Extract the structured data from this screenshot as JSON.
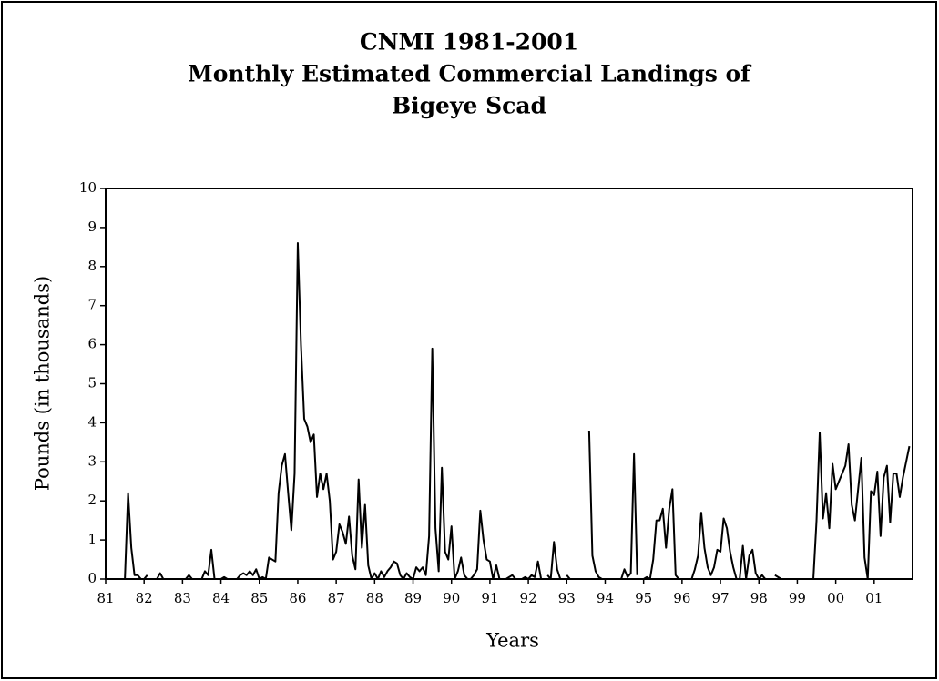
{
  "chart_data": {
    "type": "line",
    "title": [
      "CNMI 1981-2001",
      "Monthly Estimated Commercial Landings of",
      "Bigeye Scad"
    ],
    "x_label": "Years",
    "y_label": "Pounds (in thousands)",
    "x": [
      1981,
      1981.083,
      1981.167,
      1981.25,
      1981.333,
      1981.417,
      1981.5,
      1981.583,
      1981.667,
      1981.75,
      1981.833,
      1981.917,
      1982,
      1982.083,
      1982.167,
      1982.25,
      1982.333,
      1982.417,
      1982.5,
      1982.583,
      1982.667,
      1982.75,
      1982.833,
      1982.917,
      1983,
      1983.083,
      1983.167,
      1983.25,
      1983.333,
      1983.417,
      1983.5,
      1983.583,
      1983.667,
      1983.75,
      1983.833,
      1983.917,
      1984,
      1984.083,
      1984.167,
      1984.25,
      1984.333,
      1984.417,
      1984.5,
      1984.583,
      1984.667,
      1984.75,
      1984.833,
      1984.917,
      1985,
      1985.083,
      1985.167,
      1985.25,
      1985.333,
      1985.417,
      1985.5,
      1985.583,
      1985.667,
      1985.75,
      1985.833,
      1985.917,
      1986,
      1986.083,
      1986.167,
      1986.25,
      1986.333,
      1986.417,
      1986.5,
      1986.583,
      1986.667,
      1986.75,
      1986.833,
      1986.917,
      1987,
      1987.083,
      1987.167,
      1987.25,
      1987.333,
      1987.417,
      1987.5,
      1987.583,
      1987.667,
      1987.75,
      1987.833,
      1987.917,
      1988,
      1988.083,
      1988.167,
      1988.25,
      1988.333,
      1988.417,
      1988.5,
      1988.583,
      1988.667,
      1988.75,
      1988.833,
      1988.917,
      1989,
      1989.083,
      1989.167,
      1989.25,
      1989.333,
      1989.417,
      1989.5,
      1989.583,
      1989.667,
      1989.75,
      1989.833,
      1989.917,
      1990,
      1990.083,
      1990.167,
      1990.25,
      1990.333,
      1990.417,
      1990.5,
      1990.583,
      1990.667,
      1990.75,
      1990.833,
      1990.917,
      1991,
      1991.083,
      1991.167,
      1991.25,
      1991.333,
      1991.417,
      1991.5,
      1991.583,
      1991.667,
      1991.75,
      1991.833,
      1991.917,
      1992,
      1992.083,
      1992.167,
      1992.25,
      1992.333,
      1992.417,
      1992.5,
      1992.583,
      1992.667,
      1992.75,
      1992.833,
      1992.917,
      1993,
      1993.083,
      1993.167,
      1993.25,
      1993.333,
      1993.417,
      1993.5,
      1993.583,
      1993.667,
      1993.75,
      1993.833,
      1993.917,
      1994,
      1994.083,
      1994.167,
      1994.25,
      1994.333,
      1994.417,
      1994.5,
      1994.583,
      1994.667,
      1994.75,
      1994.833,
      1994.917,
      1995,
      1995.083,
      1995.167,
      1995.25,
      1995.333,
      1995.417,
      1995.5,
      1995.583,
      1995.667,
      1995.75,
      1995.833,
      1995.917,
      1996,
      1996.083,
      1996.167,
      1996.25,
      1996.333,
      1996.417,
      1996.5,
      1996.583,
      1996.667,
      1996.75,
      1996.833,
      1996.917,
      1997,
      1997.083,
      1997.167,
      1997.25,
      1997.333,
      1997.417,
      1997.5,
      1997.583,
      1997.667,
      1997.75,
      1997.833,
      1997.917,
      1998,
      1998.083,
      1998.167,
      1998.25,
      1998.333,
      1998.417,
      1998.5,
      1998.583,
      1998.667,
      1998.75,
      1998.833,
      1998.917,
      1999,
      1999.083,
      1999.167,
      1999.25,
      1999.333,
      1999.417,
      1999.5,
      1999.583,
      1999.667,
      1999.75,
      1999.833,
      1999.917,
      2000,
      2000.083,
      2000.167,
      2000.25,
      2000.333,
      2000.417,
      2000.5,
      2000.583,
      2000.667,
      2000.75,
      2000.833,
      2000.917,
      2001,
      2001.083,
      2001.167,
      2001.25,
      2001.333,
      2001.417,
      2001.5,
      2001.583,
      2001.667,
      2001.75,
      2001.833,
      2001.917
    ],
    "series": [
      {
        "name": "Bigeye Scad",
        "color": "#000000",
        "values": [
          null,
          null,
          null,
          null,
          null,
          null,
          0,
          2.2,
          0.8,
          0.1,
          0.1,
          0,
          0,
          0.1,
          null,
          null,
          0,
          0.15,
          0,
          null,
          null,
          null,
          null,
          null,
          null,
          0,
          0.1,
          0,
          0,
          0,
          0,
          0.2,
          0.1,
          0.75,
          0,
          0,
          0,
          0.05,
          0,
          null,
          null,
          0,
          0.1,
          0.15,
          0.1,
          0.2,
          0.1,
          0.25,
          0,
          0.05,
          0,
          0.55,
          0.5,
          0.45,
          2.2,
          2.9,
          3.2,
          2.2,
          1.25,
          2.7,
          8.6,
          6.0,
          4.1,
          3.9,
          3.5,
          3.7,
          2.1,
          2.7,
          2.3,
          2.7,
          2.0,
          0.5,
          0.7,
          1.4,
          1.2,
          0.9,
          1.6,
          0.6,
          0.25,
          2.55,
          0.8,
          1.9,
          0.35,
          0,
          0.15,
          0,
          0.2,
          0.05,
          0.2,
          0.3,
          0.45,
          0.4,
          0.1,
          0,
          0.15,
          0.05,
          0,
          0.3,
          0.2,
          0.3,
          0.1,
          1.1,
          5.9,
          1.3,
          0.2,
          2.85,
          0.7,
          0.5,
          1.35,
          0,
          0.2,
          0.55,
          0.1,
          0,
          0,
          0.1,
          0.25,
          1.75,
          1.0,
          0.5,
          0.45,
          0,
          0.35,
          0,
          null,
          0,
          0.05,
          0.1,
          0,
          null,
          0,
          0.05,
          0,
          0.1,
          0.05,
          0.45,
          0,
          null,
          0.1,
          0,
          0.95,
          0.25,
          0,
          null,
          0.1,
          0,
          null,
          null,
          null,
          null,
          null,
          3.8,
          0.6,
          0.2,
          0.05,
          0,
          null,
          null,
          0,
          null,
          null,
          0,
          0.25,
          0.05,
          0.15,
          3.2,
          0.1,
          null,
          0,
          0.05,
          0,
          0.5,
          1.5,
          1.5,
          1.8,
          0.8,
          1.8,
          2.3,
          0.1,
          0,
          null,
          null,
          null,
          0,
          0.25,
          0.6,
          1.7,
          0.8,
          0.3,
          0.1,
          0.3,
          0.75,
          0.7,
          1.55,
          1.3,
          0.7,
          0.3,
          0,
          0,
          0.85,
          0,
          0.6,
          0.75,
          0.15,
          0,
          0.1,
          0,
          null,
          null,
          0.1,
          0.05,
          0,
          null,
          null,
          0,
          null,
          null,
          null,
          null,
          null,
          null,
          0,
          1.5,
          3.75,
          1.55,
          2.2,
          1.3,
          2.95,
          2.3,
          2.5,
          2.7,
          2.9,
          3.45,
          1.9,
          1.5,
          2.3,
          3.1,
          0.55,
          0,
          2.25,
          2.15,
          2.75,
          1.1,
          2.6,
          2.9,
          1.45,
          2.7,
          2.7,
          2.1,
          2.6,
          3.0,
          3.4
        ]
      }
    ],
    "xlim": [
      1981,
      2002
    ],
    "xticks": [
      {
        "value": 1981,
        "label": "81"
      },
      {
        "value": 1982,
        "label": "82"
      },
      {
        "value": 1983,
        "label": "83"
      },
      {
        "value": 1984,
        "label": "84"
      },
      {
        "value": 1985,
        "label": "85"
      },
      {
        "value": 1986,
        "label": "86"
      },
      {
        "value": 1987,
        "label": "87"
      },
      {
        "value": 1988,
        "label": "88"
      },
      {
        "value": 1989,
        "label": "89"
      },
      {
        "value": 1990,
        "label": "90"
      },
      {
        "value": 1991,
        "label": "91"
      },
      {
        "value": 1992,
        "label": "92"
      },
      {
        "value": 1993,
        "label": "93"
      },
      {
        "value": 1994,
        "label": "94"
      },
      {
        "value": 1995,
        "label": "95"
      },
      {
        "value": 1996,
        "label": "96"
      },
      {
        "value": 1997,
        "label": "97"
      },
      {
        "value": 1998,
        "label": "98"
      },
      {
        "value": 1999,
        "label": "99"
      },
      {
        "value": 2000,
        "label": "00"
      },
      {
        "value": 2001,
        "label": "01"
      }
    ],
    "ylim": [
      0,
      10
    ],
    "yticks": [
      0,
      1,
      2,
      3,
      4,
      5,
      6,
      7,
      8,
      9,
      10
    ],
    "grid": false
  }
}
